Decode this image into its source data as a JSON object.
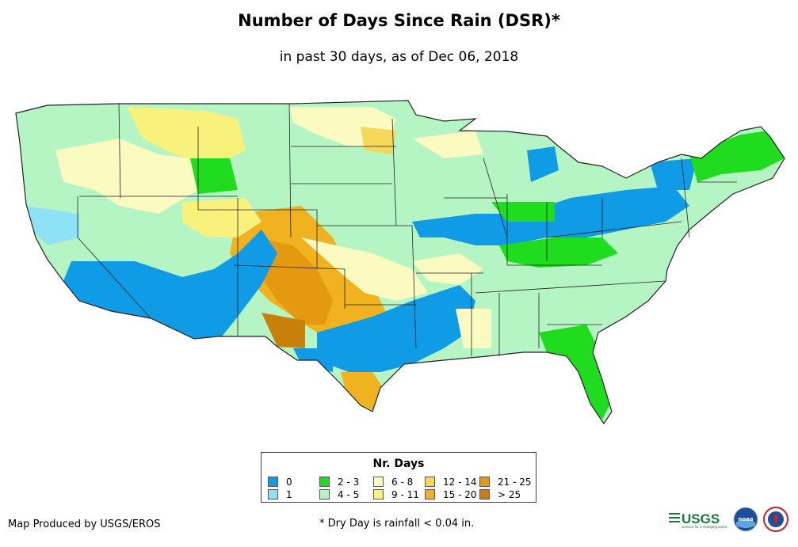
{
  "title": "Number of Days Since Rain (DSR)*",
  "subtitle": "in past 30 days, as of Dec 06, 2018",
  "legend": {
    "title": "Nr. Days",
    "items": [
      {
        "label": "0",
        "color": "#0f9be6"
      },
      {
        "label": "1",
        "color": "#8de2f5"
      },
      {
        "label": "2 - 3",
        "color": "#1fdc1f"
      },
      {
        "label": "4 - 5",
        "color": "#b4f5c3"
      },
      {
        "label": "6 - 8",
        "color": "#fbfac0"
      },
      {
        "label": "9 - 11",
        "color": "#f8f17c"
      },
      {
        "label": "12 - 14",
        "color": "#f5d75a"
      },
      {
        "label": "15 - 20",
        "color": "#f0b21e"
      },
      {
        "label": "21 - 25",
        "color": "#e49a10"
      },
      {
        "label": "> 25",
        "color": "#c9800a"
      }
    ]
  },
  "footer": {
    "credit": "Map Produced by USGS/EROS",
    "note": "* Dry Day is rainfall < 0.04 in."
  },
  "logos": {
    "usgs": "USGS",
    "usgs_tagline": "science for a changing world",
    "noaa": "noaa"
  }
}
